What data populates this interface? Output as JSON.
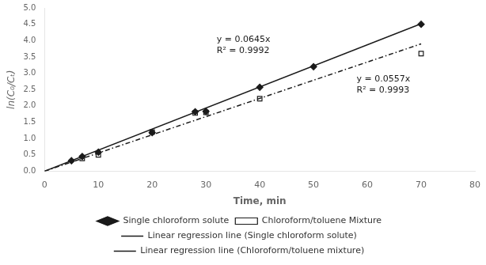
{
  "chart_data": {
    "type": "scatter",
    "x_label": "Time, min",
    "y_label": "ln(C₀/Cₜ)",
    "xlim": [
      0,
      80
    ],
    "xticks": [
      0,
      10,
      20,
      30,
      40,
      50,
      60,
      70,
      80
    ],
    "ylim": [
      0.0,
      5.0
    ],
    "yticks": [
      {
        "value": 0.0,
        "label": "0.0"
      },
      {
        "value": 0.5,
        "label": "0.5"
      },
      {
        "value": 1.0,
        "label": "1.0"
      },
      {
        "value": 1.5,
        "label": "1.5"
      },
      {
        "value": 2.0,
        "label": "2.0"
      },
      {
        "value": 2.5,
        "label": "2.5"
      },
      {
        "value": 3.0,
        "label": "3.0"
      },
      {
        "value": 3.5,
        "label": "3.5"
      },
      {
        "value": 4.0,
        "label": "4.0"
      },
      {
        "value": 4.5,
        "label": "4.5"
      },
      {
        "value": 5.0,
        "label": "5.0"
      }
    ],
    "grid": false,
    "legend": "bottom",
    "series": [
      {
        "name": "Single chloroform solute",
        "type": "scatter",
        "marker": "diamond",
        "color": "#1a1a1a",
        "x": [
          5,
          7,
          10,
          20,
          28,
          30,
          40,
          50,
          70
        ],
        "values": [
          0.32,
          0.45,
          0.58,
          1.18,
          1.82,
          1.83,
          2.57,
          3.2,
          4.5
        ]
      },
      {
        "name": "Chloroform/toluene Mixture",
        "type": "scatter",
        "marker": "square",
        "color": "#1a1a1a",
        "x": [
          7,
          10,
          20,
          28,
          30,
          40,
          70
        ],
        "values": [
          0.39,
          0.5,
          1.2,
          1.78,
          1.8,
          2.22,
          3.6
        ]
      },
      {
        "name": "Linear regression line (Single chloroform solute)",
        "type": "line",
        "line_style": "solid",
        "color": "#1a1a1a",
        "x": [
          0,
          70
        ],
        "values": [
          0,
          4.515
        ]
      },
      {
        "name": "Linear regression line (Chloroform/toluene mixture)",
        "type": "line",
        "line_style": "dashdot",
        "color": "#1a1a1a",
        "x": [
          0,
          70
        ],
        "values": [
          0,
          3.899
        ]
      }
    ],
    "annotations": [
      {
        "text": "y = 0.0645x\nR² = 0.9992",
        "x": 32,
        "y": 3.85,
        "color": "#1a1a1a"
      },
      {
        "text": "y = 0.0557x\nR² = 0.9993",
        "x": 58,
        "y": 2.65,
        "color": "#1a1a1a"
      }
    ]
  }
}
